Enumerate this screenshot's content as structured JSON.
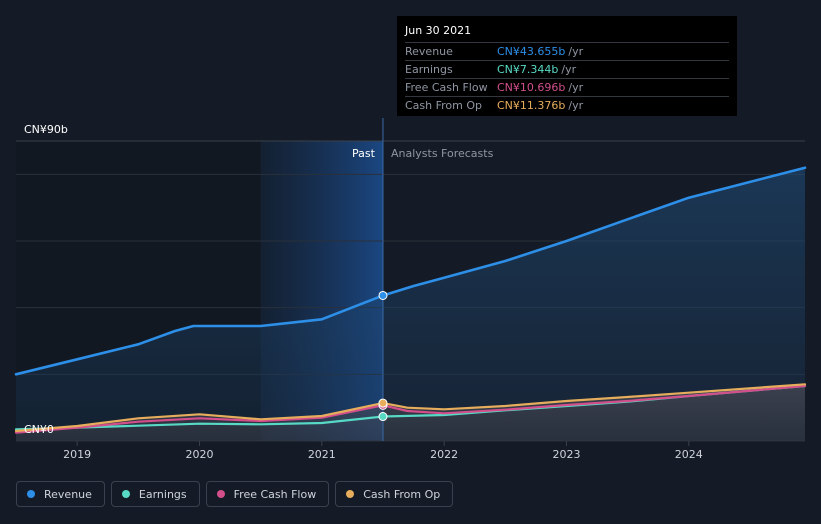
{
  "chart_data": {
    "type": "area",
    "currency_prefix": "CN¥",
    "y_unit": "b",
    "ylim": [
      0,
      90
    ],
    "y_tick_labels": [
      "CN¥90b",
      "CN¥0"
    ],
    "xlim": [
      2018.5,
      2024.95
    ],
    "x_ticks": [
      2019,
      2020,
      2021,
      2022,
      2023,
      2024
    ],
    "x_tick_labels": [
      "2019",
      "2020",
      "2021",
      "2022",
      "2023",
      "2024"
    ],
    "past_label": "Past",
    "forecast_label": "Analysts Forecasts",
    "divider_x": 2021.5,
    "highlight_start": 2020.5,
    "series": [
      {
        "name": "Revenue",
        "color": "#2d8fe8",
        "points": [
          [
            2018.5,
            20
          ],
          [
            2019.0,
            24.5
          ],
          [
            2019.5,
            29
          ],
          [
            2019.8,
            33
          ],
          [
            2019.95,
            34.5
          ],
          [
            2020.3,
            34.5
          ],
          [
            2020.5,
            34.5
          ],
          [
            2020.75,
            35.5
          ],
          [
            2021.0,
            36.5
          ],
          [
            2021.5,
            43.655
          ],
          [
            2021.75,
            46.5
          ],
          [
            2022.0,
            49
          ],
          [
            2022.5,
            54
          ],
          [
            2023.0,
            60
          ],
          [
            2023.5,
            66.5
          ],
          [
            2024.0,
            73
          ],
          [
            2024.95,
            82
          ]
        ]
      },
      {
        "name": "Earnings",
        "color": "#57d9c5",
        "points": [
          [
            2018.5,
            3.5
          ],
          [
            2019.0,
            4
          ],
          [
            2019.5,
            4.6
          ],
          [
            2020.0,
            5.2
          ],
          [
            2020.5,
            5
          ],
          [
            2021.0,
            5.4
          ],
          [
            2021.5,
            7.344
          ],
          [
            2022.0,
            7.8
          ],
          [
            2022.5,
            9.2
          ],
          [
            2023.0,
            10.5
          ],
          [
            2023.5,
            11.8
          ],
          [
            2024.0,
            13.5
          ],
          [
            2024.95,
            16.5
          ]
        ]
      },
      {
        "name": "Free Cash Flow",
        "color": "#d24f8c",
        "points": [
          [
            2018.5,
            2.5
          ],
          [
            2019.0,
            4
          ],
          [
            2019.5,
            5.8
          ],
          [
            2020.0,
            6.8
          ],
          [
            2020.5,
            6
          ],
          [
            2021.0,
            7
          ],
          [
            2021.5,
            10.696
          ],
          [
            2021.7,
            9
          ],
          [
            2022.0,
            8.3
          ],
          [
            2022.5,
            9.4
          ],
          [
            2023.0,
            10.8
          ],
          [
            2023.5,
            12
          ],
          [
            2024.0,
            13.5
          ],
          [
            2024.95,
            16.5
          ]
        ]
      },
      {
        "name": "Cash From Op",
        "color": "#e6ad5c",
        "points": [
          [
            2018.5,
            3
          ],
          [
            2019.0,
            4.5
          ],
          [
            2019.5,
            6.8
          ],
          [
            2020.0,
            8
          ],
          [
            2020.5,
            6.5
          ],
          [
            2021.0,
            7.5
          ],
          [
            2021.5,
            11.376
          ],
          [
            2021.7,
            10
          ],
          [
            2022.0,
            9.5
          ],
          [
            2022.5,
            10.5
          ],
          [
            2023.0,
            12
          ],
          [
            2023.5,
            13.2
          ],
          [
            2024.0,
            14.5
          ],
          [
            2024.95,
            17
          ]
        ]
      }
    ],
    "highlighted_date": "Jun 30 2021"
  },
  "tooltip": {
    "date": "Jun 30 2021",
    "unit": "/yr",
    "rows": [
      {
        "label": "Revenue",
        "value": "CN¥43.655b",
        "color": "#2d8fe8"
      },
      {
        "label": "Earnings",
        "value": "CN¥7.344b",
        "color": "#57d9c5"
      },
      {
        "label": "Free Cash Flow",
        "value": "CN¥10.696b",
        "color": "#d24f8c"
      },
      {
        "label": "Cash From Op",
        "value": "CN¥11.376b",
        "color": "#e6ad5c"
      }
    ]
  },
  "legend": [
    {
      "label": "Revenue",
      "color": "#2d8fe8"
    },
    {
      "label": "Earnings",
      "color": "#57d9c5"
    },
    {
      "label": "Free Cash Flow",
      "color": "#d24f8c"
    },
    {
      "label": "Cash From Op",
      "color": "#e6ad5c"
    }
  ]
}
